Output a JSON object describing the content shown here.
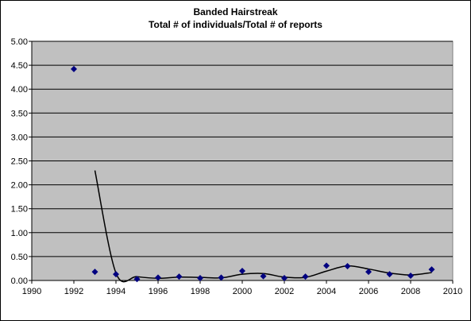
{
  "chart_data": {
    "type": "scatter",
    "title_line1": "Banded Hairstreak",
    "title_line2": "Total # of individuals/Total # of reports",
    "xlabel": "",
    "ylabel": "",
    "xlim": [
      1990,
      2010
    ],
    "ylim": [
      0,
      5
    ],
    "x_ticks": [
      1990,
      1992,
      1994,
      1996,
      1998,
      2000,
      2002,
      2004,
      2006,
      2008,
      2010
    ],
    "y_ticks": [
      0,
      0.5,
      1,
      1.5,
      2,
      2.5,
      3,
      3.5,
      4,
      4.5,
      5
    ],
    "x_tick_labels": [
      "1990",
      "1992",
      "1994",
      "1996",
      "1998",
      "2000",
      "2002",
      "2004",
      "2006",
      "2008",
      "2010"
    ],
    "y_tick_labels": [
      "0.00",
      "0.50",
      "1.00",
      "1.50",
      "2.00",
      "2.50",
      "3.00",
      "3.50",
      "4.00",
      "4.50",
      "5.00"
    ],
    "grid": "horizontal",
    "legend": "none",
    "plot_background": "#c0c0c0",
    "series": [
      {
        "kind": "points",
        "marker": "diamond",
        "color": "#000080",
        "x": [
          1992,
          1993,
          1994,
          1995,
          1996,
          1997,
          1998,
          1999,
          2000,
          2001,
          2002,
          2003,
          2004,
          2005,
          2006,
          2007,
          2008,
          2009
        ],
        "y": [
          4.42,
          0.18,
          0.13,
          0.03,
          0.06,
          0.08,
          0.05,
          0.06,
          0.2,
          0.09,
          0.05,
          0.08,
          0.31,
          0.3,
          0.18,
          0.13,
          0.1,
          0.23
        ]
      },
      {
        "kind": "trendline",
        "color": "#000000",
        "x": [
          1993,
          1994,
          1995,
          1996,
          1997,
          1998,
          1999,
          2000,
          2001,
          2002,
          2003,
          2004,
          2005,
          2006,
          2007,
          2008,
          2009
        ],
        "y": [
          2.3,
          0.155,
          0.08,
          0.045,
          0.07,
          0.065,
          0.055,
          0.13,
          0.145,
          0.07,
          0.065,
          0.195,
          0.305,
          0.24,
          0.155,
          0.115,
          0.165
        ]
      }
    ]
  }
}
